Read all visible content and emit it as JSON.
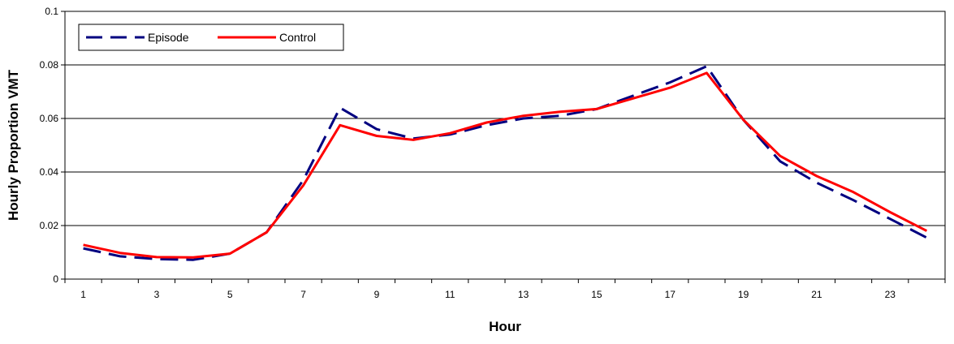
{
  "chart_data": {
    "type": "line",
    "xlabel": "Hour",
    "ylabel": "Hourly Proportion VMT",
    "x": [
      1,
      2,
      3,
      4,
      5,
      6,
      7,
      8,
      9,
      10,
      11,
      12,
      13,
      14,
      15,
      16,
      17,
      18,
      19,
      20,
      21,
      22,
      23,
      24
    ],
    "x_tick_labels": [
      "1",
      "3",
      "5",
      "7",
      "9",
      "11",
      "13",
      "15",
      "17",
      "19",
      "21",
      "23"
    ],
    "xlim": [
      0.5,
      24.5
    ],
    "ylim": [
      0,
      0.1
    ],
    "y_ticks": [
      0,
      0.02,
      0.04,
      0.06,
      0.08,
      0.1
    ],
    "y_tick_labels": [
      "0",
      "0.02",
      "0.04",
      "0.06",
      "0.08",
      "0.1"
    ],
    "grid": "horizontal",
    "legend": "top-left",
    "series": [
      {
        "name": "Episode",
        "color": "#000080",
        "dash": "dashed",
        "values": [
          0.0115,
          0.0085,
          0.0075,
          0.0072,
          0.0095,
          0.0175,
          0.037,
          0.064,
          0.056,
          0.0525,
          0.054,
          0.0575,
          0.06,
          0.061,
          0.0635,
          0.0685,
          0.0735,
          0.0795,
          0.0595,
          0.044,
          0.036,
          0.0295,
          0.0225,
          0.0155
        ]
      },
      {
        "name": "Control",
        "color": "#ff0000",
        "dash": "solid",
        "values": [
          0.0128,
          0.0098,
          0.0082,
          0.0081,
          0.0095,
          0.0175,
          0.035,
          0.0575,
          0.0535,
          0.052,
          0.0545,
          0.0585,
          0.061,
          0.0625,
          0.0635,
          0.0675,
          0.0715,
          0.077,
          0.0595,
          0.046,
          0.0385,
          0.0325,
          0.025,
          0.018
        ]
      }
    ]
  }
}
